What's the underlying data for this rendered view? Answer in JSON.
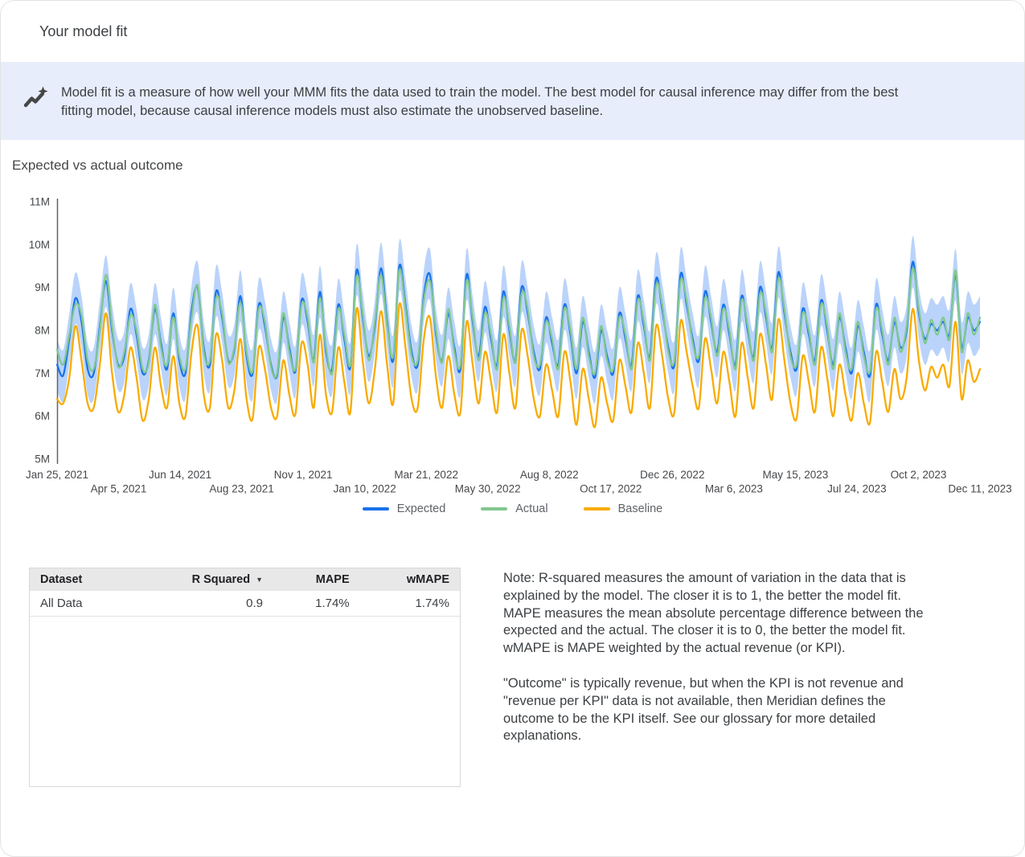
{
  "header": {
    "title": "Your model fit"
  },
  "banner": {
    "icon": "insights-icon",
    "text": "Model fit is a measure of how well your MMM fits the data used to train the model. The best model for causal inference may differ from the best fitting model, because causal inference models must also estimate the unobserved baseline."
  },
  "chart": {
    "title": "Expected vs actual outcome"
  },
  "chart_data": {
    "type": "line",
    "title": "Expected vs actual outcome",
    "x_frequency": "weekly",
    "x_tick_labels": [
      "Jan 25, 2021",
      "Apr 5, 2021",
      "Jun 14, 2021",
      "Aug 23, 2021",
      "Nov 1, 2021",
      "Jan 10, 2022",
      "Mar 21, 2022",
      "May 30, 2022",
      "Aug 8, 2022",
      "Oct 17, 2022",
      "Dec 26, 2022",
      "Mar 6, 2023",
      "May 15, 2023",
      "Jul 24, 2023",
      "Oct 2, 2023",
      "Dec 11, 2023"
    ],
    "ylim": [
      5,
      11
    ],
    "y_unit": "M",
    "y_ticks": [
      {
        "value": 5,
        "label": "5M"
      },
      {
        "value": 6,
        "label": "6M"
      },
      {
        "value": 7,
        "label": "7M"
      },
      {
        "value": 8,
        "label": "8M"
      },
      {
        "value": 9,
        "label": "9M"
      },
      {
        "value": 10,
        "label": "10M"
      },
      {
        "value": 11,
        "label": "11M"
      }
    ],
    "grid": false,
    "legend_position": "bottom",
    "band": {
      "around": "Expected",
      "halfwidth": 0.6,
      "color": "#AECBFA",
      "opacity": 0.85
    },
    "series": [
      {
        "name": "Expected",
        "color": "#1A73E8",
        "values": [
          7.2,
          6.95,
          7.8,
          8.75,
          8.2,
          7.1,
          7.0,
          8.1,
          9.15,
          8.0,
          7.2,
          7.4,
          8.5,
          7.9,
          7.0,
          7.3,
          8.5,
          7.7,
          7.1,
          8.4,
          7.3,
          7.0,
          8.45,
          9.0,
          7.6,
          7.2,
          8.9,
          8.3,
          7.3,
          7.55,
          8.8,
          7.4,
          7.0,
          8.6,
          8.1,
          7.2,
          6.95,
          8.3,
          7.6,
          7.05,
          8.7,
          8.2,
          7.3,
          8.9,
          7.5,
          7.1,
          8.6,
          7.8,
          7.15,
          9.4,
          8.3,
          7.4,
          8.1,
          9.45,
          8.2,
          7.3,
          9.5,
          8.6,
          7.5,
          7.2,
          8.8,
          9.3,
          7.9,
          7.3,
          8.4,
          7.6,
          7.1,
          9.3,
          8.2,
          7.4,
          8.55,
          7.8,
          7.2,
          8.9,
          8.0,
          7.3,
          9.0,
          8.4,
          7.5,
          7.1,
          8.3,
          7.7,
          7.2,
          8.6,
          7.9,
          7.0,
          8.2,
          7.5,
          6.9,
          8.0,
          7.4,
          7.0,
          8.4,
          7.8,
          7.2,
          8.8,
          8.1,
          7.4,
          9.2,
          8.5,
          7.6,
          7.2,
          9.3,
          8.6,
          7.8,
          7.3,
          8.9,
          8.2,
          7.5,
          8.6,
          7.9,
          7.2,
          8.8,
          8.0,
          7.4,
          9.0,
          8.3,
          7.6,
          9.35,
          8.4,
          7.5,
          7.1,
          8.5,
          7.9,
          7.3,
          8.7,
          8.0,
          7.2,
          8.3,
          7.6,
          7.0,
          8.1,
          7.5,
          6.95,
          8.6,
          7.9,
          7.3,
          8.2,
          7.6,
          8.0,
          9.6,
          8.4,
          7.8,
          8.15,
          8.0,
          8.2,
          7.9,
          9.3,
          7.6,
          8.3,
          8.0,
          8.2
        ]
      },
      {
        "name": "Actual",
        "color": "#82C88E",
        "values": [
          7.55,
          7.2,
          7.9,
          8.6,
          8.35,
          7.3,
          7.1,
          8.0,
          9.3,
          8.1,
          7.15,
          7.5,
          8.35,
          8.0,
          7.1,
          7.25,
          8.6,
          7.6,
          7.2,
          8.3,
          7.4,
          7.1,
          8.3,
          9.05,
          7.5,
          7.3,
          8.75,
          8.4,
          7.25,
          7.6,
          8.65,
          7.5,
          7.05,
          8.5,
          8.2,
          7.15,
          7.0,
          8.4,
          7.5,
          7.1,
          8.6,
          8.3,
          7.25,
          8.75,
          7.6,
          7.0,
          8.5,
          7.9,
          7.2,
          9.25,
          8.4,
          7.3,
          8.2,
          9.3,
          8.1,
          7.4,
          9.4,
          8.5,
          7.4,
          7.3,
          8.7,
          9.15,
          8.0,
          7.25,
          8.5,
          7.5,
          7.2,
          9.15,
          8.3,
          7.3,
          8.4,
          7.9,
          7.1,
          8.75,
          8.1,
          7.25,
          8.85,
          8.5,
          7.4,
          7.2,
          8.2,
          7.8,
          7.1,
          8.5,
          8.0,
          7.1,
          8.3,
          7.4,
          7.0,
          8.1,
          7.3,
          7.1,
          8.3,
          7.9,
          7.1,
          8.7,
          8.2,
          7.3,
          9.05,
          8.6,
          7.5,
          7.3,
          9.15,
          8.7,
          7.7,
          7.4,
          8.75,
          8.3,
          7.4,
          8.5,
          8.0,
          7.1,
          8.7,
          8.1,
          7.3,
          8.85,
          8.4,
          7.5,
          9.2,
          8.5,
          7.4,
          7.2,
          8.4,
          8.0,
          7.2,
          8.6,
          8.1,
          7.1,
          8.4,
          7.5,
          7.1,
          8.2,
          7.4,
          7.05,
          8.5,
          8.0,
          7.2,
          8.3,
          7.5,
          8.1,
          9.45,
          8.5,
          7.7,
          8.25,
          7.9,
          8.3,
          7.8,
          9.4,
          7.5,
          8.4,
          7.9,
          8.3
        ]
      },
      {
        "name": "Baseline",
        "color": "#F9AB00",
        "values": [
          6.4,
          6.3,
          6.9,
          8.1,
          7.3,
          6.3,
          6.2,
          7.2,
          8.4,
          7.0,
          6.1,
          6.5,
          7.6,
          6.9,
          5.9,
          6.4,
          7.6,
          6.7,
          6.2,
          7.4,
          6.3,
          6.0,
          7.5,
          8.1,
          6.5,
          6.2,
          7.9,
          7.3,
          6.2,
          6.6,
          7.8,
          6.4,
          5.95,
          7.6,
          7.1,
          6.2,
          6.0,
          7.3,
          6.5,
          6.05,
          7.7,
          7.2,
          6.2,
          7.9,
          6.5,
          6.1,
          7.6,
          6.8,
          6.1,
          8.5,
          7.3,
          6.3,
          7.1,
          8.45,
          7.2,
          6.3,
          8.6,
          7.6,
          6.4,
          6.2,
          7.8,
          8.3,
          6.9,
          6.2,
          7.4,
          6.5,
          6.1,
          8.2,
          7.2,
          6.3,
          7.5,
          6.8,
          6.1,
          7.9,
          7.0,
          6.2,
          8.0,
          7.4,
          6.4,
          6.0,
          7.2,
          6.6,
          6.0,
          7.5,
          6.8,
          5.8,
          7.1,
          6.4,
          5.75,
          6.9,
          6.3,
          5.9,
          7.3,
          6.7,
          6.1,
          7.7,
          7.0,
          6.2,
          8.1,
          7.4,
          6.4,
          6.1,
          8.2,
          7.5,
          6.7,
          6.2,
          7.8,
          7.1,
          6.3,
          7.5,
          6.8,
          6.0,
          7.7,
          6.9,
          6.2,
          7.9,
          7.2,
          6.4,
          8.25,
          7.3,
          6.3,
          5.95,
          7.4,
          6.8,
          6.1,
          7.6,
          6.9,
          6.0,
          7.2,
          6.5,
          5.9,
          7.0,
          6.3,
          5.85,
          7.5,
          6.8,
          6.1,
          7.1,
          6.4,
          6.9,
          8.5,
          7.3,
          6.6,
          7.15,
          6.9,
          7.2,
          6.7,
          8.2,
          6.4,
          7.3,
          6.8,
          7.1
        ]
      }
    ]
  },
  "table": {
    "sort_indicator": "▼",
    "columns": [
      {
        "label": "Dataset",
        "align": "left"
      },
      {
        "label": "R Squared",
        "align": "right",
        "sort": "desc"
      },
      {
        "label": "MAPE",
        "align": "right"
      },
      {
        "label": "wMAPE",
        "align": "right"
      }
    ],
    "rows": [
      [
        "All Data",
        "0.9",
        "1.74%",
        "1.74%"
      ]
    ]
  },
  "notes": {
    "p1": "Note: R-squared measures the amount of variation in the data that is explained by the model. The closer it is to 1, the better the model fit. MAPE measures the mean absolute percentage difference between the expected and the actual. The closer it is to 0, the better the model fit. wMAPE is MAPE weighted by the actual revenue (or KPI).",
    "p2": "\"Outcome\" is typically revenue, but when the KPI is not revenue and \"revenue per KPI\" data is not available, then Meridian defines the outcome to be the KPI itself. See our glossary for more detailed explanations."
  },
  "colors": {
    "banner_bg": "#E7EDFB",
    "expected": "#1A73E8",
    "actual": "#82C88E",
    "baseline": "#F9AB00",
    "band": "#AECBFA",
    "table_header_bg": "#E8E8E8",
    "text": "#3C4043"
  }
}
